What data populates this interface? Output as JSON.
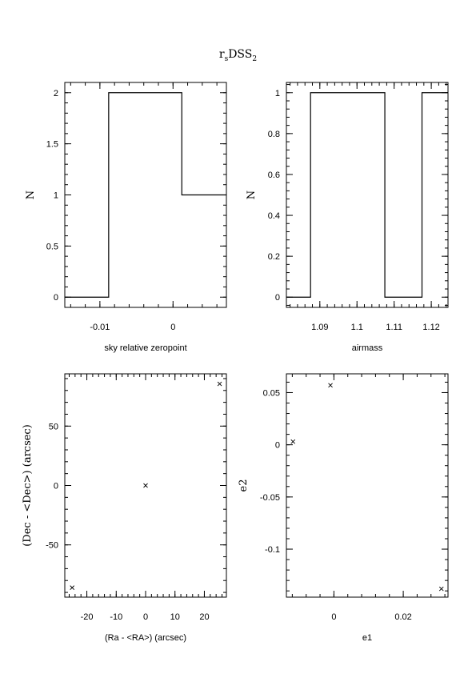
{
  "figure": {
    "title_main": "r",
    "title_sub1": "s",
    "title_mid": "DSS",
    "title_sub2": "2"
  },
  "chart_data": [
    {
      "id": "zeropoint",
      "type": "step-histogram",
      "xlabel": "sky relative zeropoint",
      "ylabel": "N",
      "xlim": [
        -0.0148,
        0.0073
      ],
      "ylim": [
        -0.1,
        2.1
      ],
      "xticks": [
        -0.01,
        0
      ],
      "xtick_labels": [
        "-0.01",
        "0"
      ],
      "yticks": [
        0,
        0.5,
        1,
        1.5,
        2
      ],
      "ytick_labels": [
        "0",
        "0.5",
        "1",
        "1.5",
        "2"
      ],
      "edges": [
        -0.0148,
        -0.0088,
        0.0012,
        0.0073
      ],
      "counts": [
        0,
        2,
        1
      ]
    },
    {
      "id": "airmass",
      "type": "step-histogram",
      "xlabel": "airmass",
      "ylabel": "N",
      "xlim": [
        1.081,
        1.1245
      ],
      "ylim": [
        -0.05,
        1.05
      ],
      "xticks": [
        1.09,
        1.1,
        1.11,
        1.12
      ],
      "xtick_labels": [
        "1.09",
        "1.1",
        "1.11",
        "1.12"
      ],
      "yticks": [
        0,
        0.2,
        0.4,
        0.6,
        0.8,
        1
      ],
      "ytick_labels": [
        "0",
        "0.2",
        "0.4",
        "0.6",
        "0.8",
        "1"
      ],
      "edges": [
        1.081,
        1.0875,
        1.1075,
        1.1175,
        1.1245
      ],
      "counts": [
        0,
        1,
        0,
        1
      ]
    },
    {
      "id": "positions",
      "type": "scatter",
      "xlabel": "(Ra - <RA>) (arcsec)",
      "ylabel": "(Dec - <Dec>) (arcsec)",
      "xlim": [
        -27.5,
        27.5
      ],
      "ylim": [
        -94,
        94
      ],
      "xticks": [
        -20,
        -10,
        0,
        10,
        20
      ],
      "xtick_labels": [
        "-20",
        "-10",
        "0",
        "10",
        "20"
      ],
      "yticks": [
        -50,
        0,
        50
      ],
      "ytick_labels": [
        "-50",
        "0",
        "50"
      ],
      "points": [
        [
          -25,
          -86
        ],
        [
          0,
          0
        ],
        [
          25.2,
          85.5
        ]
      ]
    },
    {
      "id": "ellipticity",
      "type": "scatter",
      "xlabel": "e1",
      "ylabel": "e2",
      "xlim": [
        -0.0137,
        0.0329
      ],
      "ylim": [
        -0.146,
        0.068
      ],
      "xticks": [
        0,
        0.02
      ],
      "xtick_labels": [
        "0",
        "0.02"
      ],
      "yticks": [
        -0.1,
        -0.05,
        0,
        0.05
      ],
      "ytick_labels": [
        "-0.1",
        "-0.05",
        "0",
        "0.05"
      ],
      "points": [
        [
          -0.0118,
          0.003
        ],
        [
          -0.001,
          0.057
        ],
        [
          0.031,
          -0.138
        ]
      ]
    }
  ]
}
